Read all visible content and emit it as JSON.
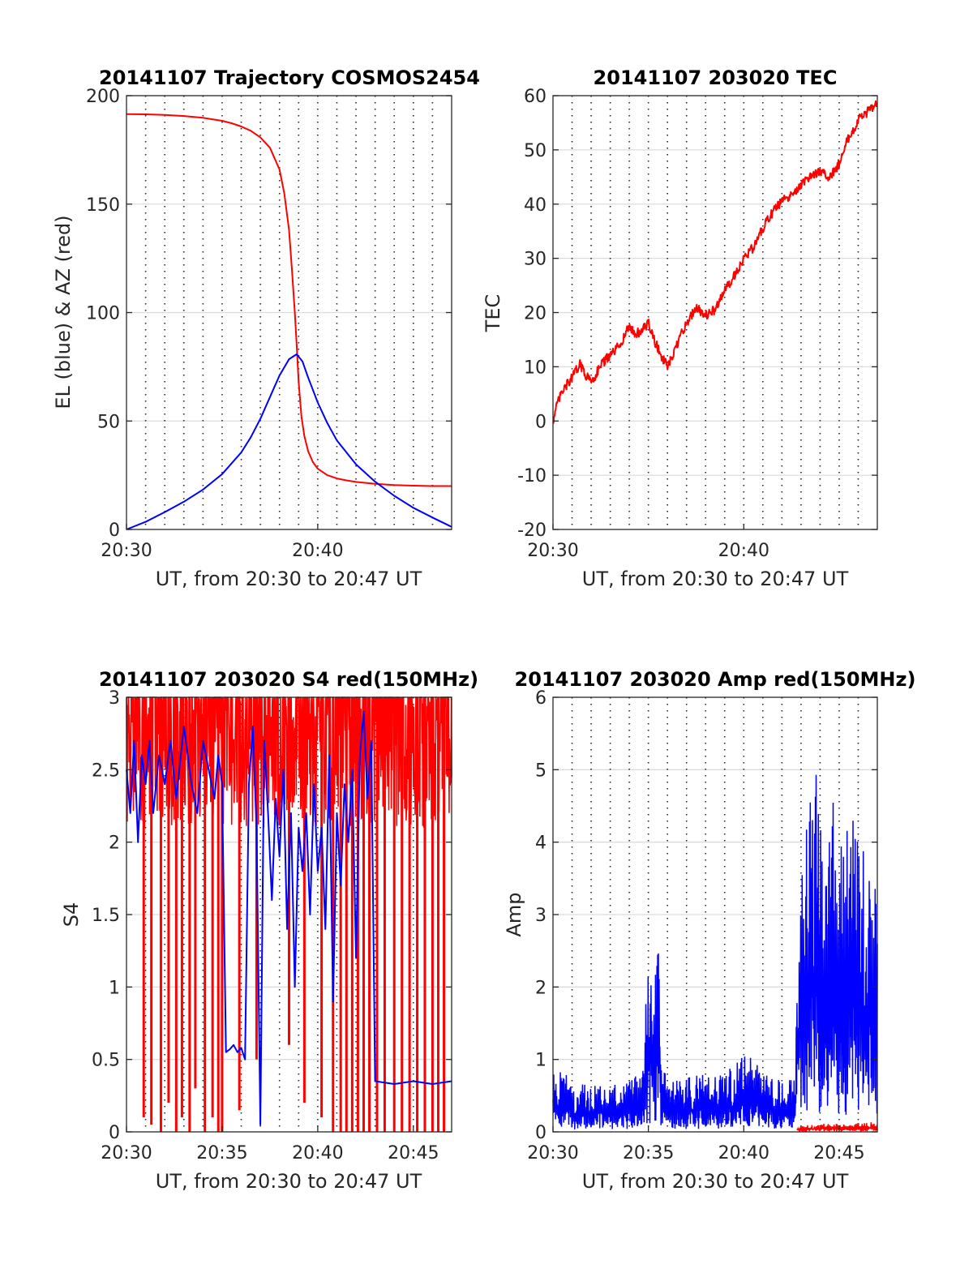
{
  "colors": {
    "red": "#ff0000",
    "blue": "#0000ff",
    "axis": "#262626"
  },
  "chart_data": [
    {
      "type": "line",
      "title": "20141107 Trajectory COSMOS2454",
      "xlabel": "UT, from 20:30 to 20:47 UT",
      "ylabel": "EL (blue) & AZ (red)",
      "xlim": [
        0,
        17
      ],
      "ylim": [
        0,
        200
      ],
      "x_unit": "minutes after 20:30 UT",
      "xticks": [
        {
          "v": 0,
          "label": "20:30"
        },
        {
          "v": 10,
          "label": "20:40"
        }
      ],
      "yticks": [
        0,
        50,
        100,
        150,
        200
      ],
      "vgrid_minutes": [
        1,
        2,
        3,
        4,
        5,
        6,
        7,
        8,
        9,
        10,
        11,
        12,
        13,
        14,
        15,
        16
      ],
      "series": [
        {
          "color": "red",
          "x": [
            0,
            1,
            2,
            3,
            4,
            5,
            5.5,
            6,
            6.5,
            7,
            7.5,
            8,
            8.25,
            8.5,
            8.65,
            8.8,
            8.9,
            9.0,
            9.15,
            9.3,
            9.5,
            9.75,
            10,
            10.5,
            11,
            11.5,
            12,
            13,
            14,
            15,
            16,
            17
          ],
          "values": [
            191.5,
            191.4,
            191.1,
            190.6,
            189.8,
            188.4,
            187.3,
            185.8,
            183.8,
            180.8,
            176,
            166,
            155,
            138,
            120,
            100,
            85,
            68,
            52,
            43,
            36,
            31,
            28,
            25,
            23.5,
            22.6,
            21.9,
            21,
            20.5,
            20.2,
            20,
            20
          ]
        },
        {
          "color": "blue",
          "x": [
            0,
            1,
            2,
            3,
            4,
            5,
            6,
            6.5,
            7,
            7.5,
            8,
            8.5,
            8.9,
            9.2,
            9.5,
            10,
            10.5,
            11,
            12,
            13,
            14,
            15,
            16,
            17
          ],
          "values": [
            0,
            3.5,
            8,
            12.8,
            18.4,
            25.5,
            35.5,
            42.5,
            51,
            61,
            71,
            78.5,
            80.8,
            77.5,
            70,
            58.5,
            49,
            41,
            30,
            22,
            15.5,
            10,
            5.5,
            1.2
          ]
        }
      ]
    },
    {
      "type": "line",
      "title": "20141107 203020 TEC",
      "xlabel": "UT, from 20:30 to 20:47 UT",
      "ylabel": "TEC",
      "xlim": [
        0,
        17
      ],
      "ylim": [
        -20,
        60
      ],
      "x_unit": "minutes after 20:30 UT",
      "xticks": [
        {
          "v": 0,
          "label": "20:30"
        },
        {
          "v": 10,
          "label": "20:40"
        }
      ],
      "yticks": [
        -20,
        -10,
        0,
        10,
        20,
        30,
        40,
        50,
        60
      ],
      "vgrid_minutes": [
        1,
        2,
        3,
        4,
        5,
        6,
        7,
        8,
        9,
        10,
        11,
        12,
        13,
        14,
        15,
        16
      ],
      "series": [
        {
          "color": "red",
          "noise": 0.9,
          "x": [
            0,
            0.3,
            0.6,
            1.0,
            1.4,
            1.8,
            2.1,
            2.5,
            3.0,
            3.5,
            4.0,
            4.3,
            4.6,
            5.0,
            5.3,
            5.6,
            6.0,
            6.3,
            6.6,
            7.0,
            7.5,
            8.0,
            8.5,
            8.8,
            9.2,
            9.6,
            10.0,
            10.5,
            11.0,
            11.5,
            12.0,
            12.5,
            13.0,
            13.5,
            14.0,
            14.5,
            15.0,
            15.3,
            15.7,
            16.0,
            16.5,
            17.0
          ],
          "values": [
            0,
            4,
            6,
            8,
            10.5,
            8,
            7.5,
            10.5,
            12,
            14,
            17.5,
            16,
            16.5,
            18,
            15,
            12.5,
            10,
            12,
            15,
            18,
            21,
            19.5,
            20.5,
            23,
            25,
            27.5,
            30,
            32,
            35.5,
            38.5,
            40.5,
            41.5,
            43.5,
            45,
            46,
            45,
            47.5,
            51,
            53,
            55.5,
            57,
            59
          ]
        }
      ]
    },
    {
      "type": "line",
      "title": "20141107 203020 S4 red(150MHz)",
      "xlabel": "UT, from 20:30 to 20:47 UT",
      "ylabel": "S4",
      "xlim": [
        0,
        17
      ],
      "ylim": [
        0,
        3
      ],
      "x_unit": "minutes after 20:30 UT",
      "xticks": [
        {
          "v": 0,
          "label": "20:30"
        },
        {
          "v": 5,
          "label": "20:35"
        },
        {
          "v": 10,
          "label": "20:40"
        },
        {
          "v": 15,
          "label": "20:45"
        }
      ],
      "yticks": [
        0,
        0.5,
        1,
        1.5,
        2,
        2.5,
        3
      ],
      "ytick_labels": [
        "0",
        "0.5",
        "1",
        "1.5",
        "2",
        "2.5",
        "3"
      ],
      "vgrid_minutes": [
        1,
        2,
        3,
        4,
        5,
        6,
        7,
        8,
        9,
        10,
        11,
        12,
        13,
        14,
        15,
        16
      ],
      "series": [
        {
          "color": "red",
          "render": "spikes",
          "baseline": 2.8,
          "base_noise": 0.7,
          "clip_top": 3,
          "spike_x": [
            0.9,
            1.3,
            1.8,
            2.2,
            2.6,
            2.9,
            3.3,
            3.6,
            4.1,
            4.5,
            4.8,
            5.0,
            5.9,
            6.8,
            8.5,
            9.3,
            10.2,
            10.8,
            11.2,
            11.5,
            11.8,
            12.1,
            12.4,
            12.7,
            13.1,
            13.5,
            14.0,
            14.4,
            14.8,
            15.2,
            15.6,
            16.0,
            16.3,
            16.6
          ],
          "spike_min": [
            0.1,
            0.05,
            0,
            0.2,
            0,
            0.1,
            0,
            0.3,
            0,
            0.1,
            0,
            0,
            0.15,
            0.5,
            0.6,
            0.2,
            0.1,
            0,
            0,
            0,
            0,
            0,
            0,
            0,
            0,
            0,
            0,
            0,
            0,
            0,
            0,
            0,
            0,
            0
          ]
        },
        {
          "color": "blue",
          "x": [
            0,
            0.2,
            0.4,
            0.6,
            0.8,
            1.0,
            1.2,
            1.4,
            1.7,
            2.0,
            2.3,
            2.6,
            3.0,
            3.4,
            3.7,
            4.0,
            4.3,
            4.6,
            4.8,
            5.0,
            5.2,
            5.4,
            5.6,
            5.8,
            6.0,
            6.2,
            6.4,
            6.6,
            6.8,
            7.0,
            7.2,
            7.4,
            7.6,
            7.8,
            8.0,
            8.2,
            8.4,
            8.6,
            8.8,
            9.0,
            9.2,
            9.4,
            9.6,
            9.8,
            10.0,
            10.2,
            10.4,
            10.6,
            10.8,
            11.0,
            11.2,
            11.4,
            11.6,
            11.8,
            12.0,
            12.2,
            12.4,
            12.6,
            12.8,
            13.0,
            14.0,
            15.0,
            16.0,
            17.0
          ],
          "values": [
            2.5,
            2.2,
            2.7,
            2.0,
            2.6,
            2.4,
            2.7,
            2.2,
            2.6,
            2.4,
            2.7,
            2.3,
            2.8,
            2.4,
            2.2,
            2.7,
            2.5,
            2.3,
            2.6,
            2.4,
            0.55,
            0.57,
            0.6,
            0.55,
            0.58,
            0.5,
            2.4,
            2.8,
            2.1,
            0.05,
            2.7,
            2.2,
            1.6,
            2.3,
            1.9,
            2.5,
            1.4,
            2.2,
            1.0,
            2.1,
            1.8,
            2.2,
            1.5,
            2.4,
            1.8,
            2.1,
            1.4,
            2.6,
            0.9,
            2.2,
            1.7,
            2.4,
            2.0,
            2.5,
            1.2,
            2.6,
            2.9,
            2.3,
            2.7,
            0.35,
            0.33,
            0.35,
            0.33,
            0.35
          ]
        }
      ]
    },
    {
      "type": "line",
      "title": "20141107 203020 Amp red(150MHz)",
      "xlabel": "UT, from 20:30 to 20:47 UT",
      "ylabel": "Amp",
      "xlim": [
        0,
        17
      ],
      "ylim": [
        0,
        6
      ],
      "x_unit": "minutes after 20:30 UT",
      "xticks": [
        {
          "v": 0,
          "label": "20:30"
        },
        {
          "v": 5,
          "label": "20:35"
        },
        {
          "v": 10,
          "label": "20:40"
        },
        {
          "v": 15,
          "label": "20:45"
        }
      ],
      "yticks": [
        0,
        1,
        2,
        3,
        4,
        5,
        6
      ],
      "vgrid_minutes": [
        1,
        2,
        3,
        4,
        5,
        6,
        7,
        8,
        9,
        10,
        11,
        12,
        13,
        14,
        15,
        16
      ],
      "series": [
        {
          "color": "red",
          "render": "band",
          "x": [
            12.8,
            13.5,
            14.5,
            15.5,
            16.5,
            17.0
          ],
          "values": [
            0.08,
            0.1,
            0.12,
            0.1,
            0.15,
            0.1
          ]
        },
        {
          "color": "blue",
          "render": "band",
          "x": [
            0,
            0.5,
            1.0,
            2.0,
            3.0,
            4.0,
            4.8,
            4.9,
            5.2,
            5.6,
            5.7,
            6.0,
            7.0,
            8.0,
            9.0,
            9.5,
            10.0,
            10.5,
            11.0,
            12.0,
            12.7,
            12.8,
            13.2,
            13.8,
            14.3,
            14.7,
            15.2,
            15.6,
            16.0,
            16.5,
            17.0
          ],
          "values": [
            0.8,
            0.9,
            0.7,
            0.65,
            0.65,
            0.7,
            0.9,
            2.2,
            2.5,
            2.6,
            0.9,
            0.8,
            0.75,
            0.8,
            0.8,
            0.95,
            1.05,
            1.2,
            0.8,
            0.7,
            0.75,
            3.5,
            4.4,
            5.0,
            4.5,
            4.8,
            4.0,
            4.7,
            4.4,
            3.8,
            3.3
          ]
        }
      ]
    }
  ]
}
